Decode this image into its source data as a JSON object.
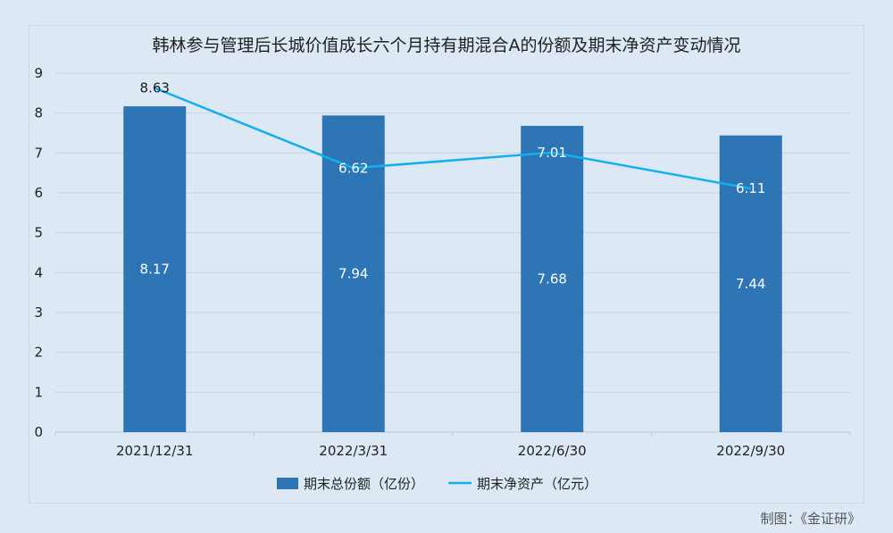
{
  "chart_data": {
    "type": "bar",
    "title": "韩林参与管理后长城价值成长六个月持有期混合A的份额及期末净资产变动情况",
    "categories": [
      "2021/12/31",
      "2022/3/31",
      "2022/6/30",
      "2022/9/30"
    ],
    "series": [
      {
        "name": "期末总份额（亿份）",
        "type": "bar",
        "color": "#2e75b6",
        "values": [
          8.17,
          7.94,
          7.68,
          7.44
        ]
      },
      {
        "name": "期末净资产（亿元）",
        "type": "line",
        "color": "#12b0ee",
        "values": [
          8.63,
          6.62,
          7.01,
          6.11
        ]
      }
    ],
    "ylim": [
      0,
      9
    ],
    "yticks": [
      "0",
      "1",
      "2",
      "3",
      "4",
      "5",
      "6",
      "7",
      "8",
      "9"
    ],
    "grid": true,
    "legend": "bottom"
  },
  "credit": "制图：《金证研》"
}
